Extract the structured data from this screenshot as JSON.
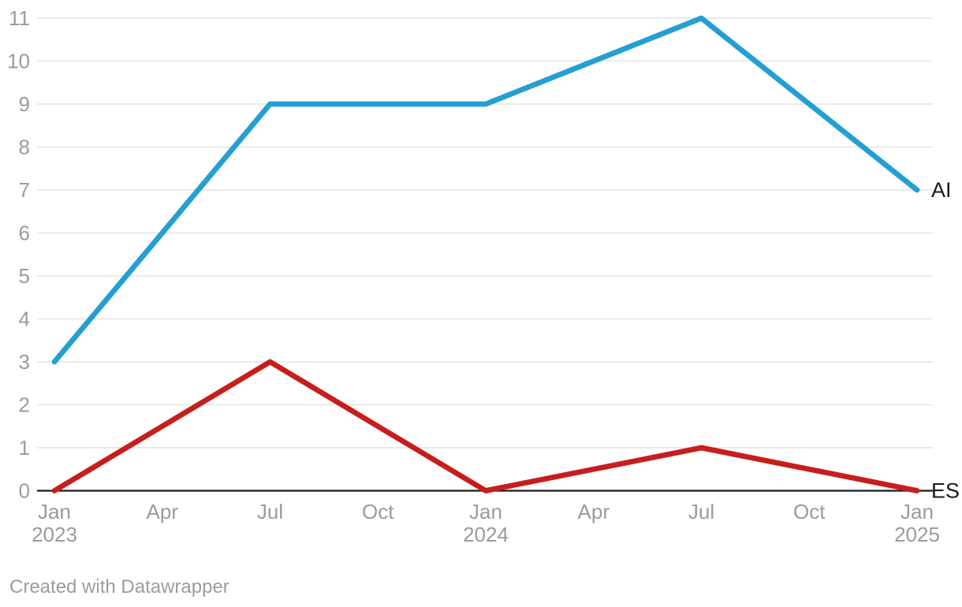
{
  "footer": {
    "attribution": "Created with Datawrapper"
  },
  "colors": {
    "background": "#ffffff",
    "grid": "#e4e4e4",
    "axis_text": "#9b9b9b",
    "baseline": "#1a1a1a",
    "series_label": "#1a1a1a",
    "attribution_text": "#9d9d9d",
    "series_ai": "#249fd3",
    "series_es": "#c71e1d"
  },
  "chart_data": {
    "type": "line",
    "title": "",
    "xlabel": "",
    "ylabel": "",
    "x_unit": "months since Jan 2023",
    "xlim": [
      0,
      24
    ],
    "ylim": [
      0,
      11
    ],
    "grid": "horizontal gridlines on, black zero baseline",
    "legend_position": "labels at right end of each line",
    "y_ticks": [
      0,
      1,
      2,
      3,
      4,
      5,
      6,
      7,
      8,
      9,
      10,
      11
    ],
    "x_ticks": [
      {
        "m": 0,
        "label": "Jan",
        "year": "2023"
      },
      {
        "m": 3,
        "label": "Apr"
      },
      {
        "m": 6,
        "label": "Jul"
      },
      {
        "m": 9,
        "label": "Oct"
      },
      {
        "m": 12,
        "label": "Jan",
        "year": "2024"
      },
      {
        "m": 15,
        "label": "Apr"
      },
      {
        "m": 18,
        "label": "Jul"
      },
      {
        "m": 21,
        "label": "Oct"
      },
      {
        "m": 24,
        "label": "Jan",
        "year": "2025"
      }
    ],
    "series": [
      {
        "name": "AI",
        "color": "#249fd3",
        "points": [
          [
            0,
            3
          ],
          [
            6,
            9
          ],
          [
            12,
            9
          ],
          [
            18,
            11
          ],
          [
            24,
            7
          ]
        ]
      },
      {
        "name": "ES",
        "color": "#c71e1d",
        "points": [
          [
            0,
            0
          ],
          [
            6,
            3
          ],
          [
            12,
            0
          ],
          [
            18,
            1
          ],
          [
            24,
            0
          ]
        ]
      }
    ]
  }
}
